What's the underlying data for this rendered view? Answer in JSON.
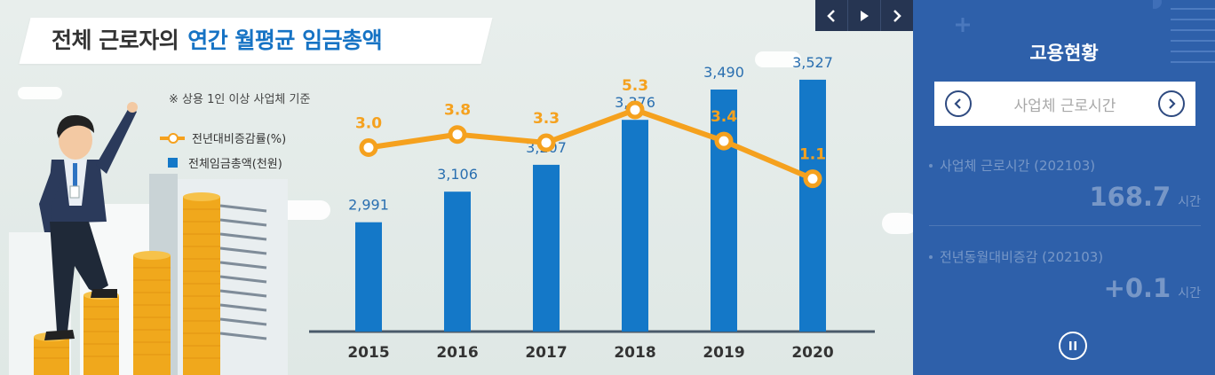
{
  "infographic": {
    "title_main": "전체 근로자의",
    "title_highlight": "연간 월평균 임금총액",
    "note": "※ 상용 1인 이상 사업체 기준",
    "legend_line": "전년대비증감률(%)",
    "legend_bar": "전체임금총액(천원)",
    "colors": {
      "bar": "#1478c8",
      "line": "#f5a11e",
      "line_label": "#f5a11e",
      "bar_label": "#2a6fb0"
    }
  },
  "chart_data": {
    "type": "bar",
    "categories": [
      "2015",
      "2016",
      "2017",
      "2018",
      "2019",
      "2020"
    ],
    "series": [
      {
        "name": "전체임금총액(천원)",
        "type": "bar",
        "values": [
          2991,
          3106,
          3207,
          3376,
          3490,
          3527
        ],
        "labels": [
          "2,991",
          "3,106",
          "3,207",
          "3,376",
          "3,490",
          "3,527"
        ]
      },
      {
        "name": "전년대비증감률(%)",
        "type": "line",
        "values": [
          3.0,
          3.8,
          3.3,
          5.3,
          3.4,
          1.1
        ],
        "labels": [
          "3.0",
          "3.8",
          "3.3",
          "5.3",
          "3.4",
          "1.1"
        ]
      }
    ],
    "legend": "top-left",
    "grid": false
  },
  "nav": {
    "prev_icon": "chevron-left-icon",
    "play_icon": "play-icon",
    "next_icon": "chevron-right-icon"
  },
  "panel": {
    "title": "고용현황",
    "selector_label": "사업체 근로시간",
    "stats": [
      {
        "name": "사업체 근로시간 (202103)",
        "value": "168.7",
        "unit": "시간"
      },
      {
        "name": "전년동월대비증감 (202103)",
        "value": "+0.1",
        "unit": "시간"
      }
    ],
    "pause_icon": "pause-icon"
  }
}
